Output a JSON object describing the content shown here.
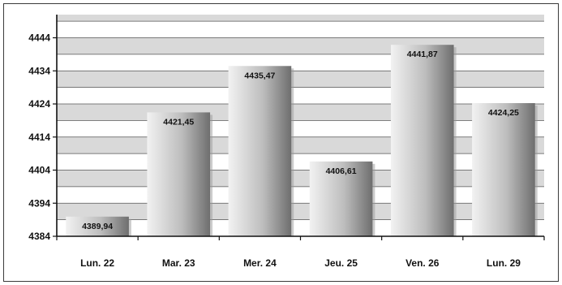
{
  "chart_data": {
    "type": "bar",
    "categories": [
      "Lun. 22",
      "Mar. 23",
      "Mer. 24",
      "Jeu. 25",
      "Ven. 26",
      "Lun. 29"
    ],
    "values": [
      4389.94,
      4421.45,
      4435.47,
      4406.61,
      4441.87,
      4424.25
    ],
    "value_labels": [
      "4389,94",
      "4421,45",
      "4435,47",
      "4406,61",
      "4441,87",
      "4424,25"
    ],
    "yticks": [
      4384,
      4394,
      4404,
      4414,
      4424,
      4434,
      4444
    ],
    "ylim": [
      4384,
      4451
    ],
    "title": "",
    "xlabel": "",
    "ylabel": "",
    "grid": true,
    "legend": "none",
    "colors": {
      "bar_light": "#f2f2f2",
      "bar_mid": "#bdbdbd",
      "bar_dark": "#6e6e6e",
      "band_gray": "#d9d9d9",
      "band_white": "#ffffff",
      "axis": "#111111"
    }
  }
}
